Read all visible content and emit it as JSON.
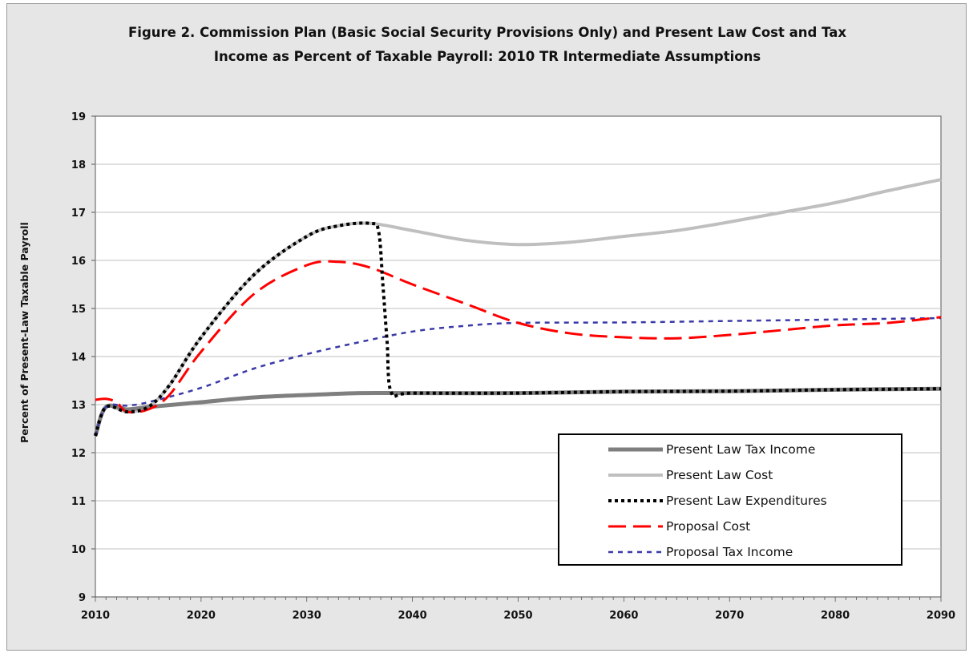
{
  "figure": {
    "title_line1": "Figure 2.  Commission Plan (Basic Social Security Provisions Only) and Present Law Cost and Tax",
    "title_line2": "Income as Percent of Taxable Payroll: 2010 TR Intermediate Assumptions"
  },
  "chart_data": {
    "type": "line",
    "ylabel": "Percent of Present-Law Taxable Payroll",
    "xlabel": "",
    "xlim": [
      2010,
      2090
    ],
    "ylim": [
      9,
      19
    ],
    "xticks": [
      2010,
      2020,
      2030,
      2040,
      2050,
      2060,
      2070,
      2080,
      2090
    ],
    "yticks": [
      9,
      10,
      11,
      12,
      13,
      14,
      15,
      16,
      17,
      18,
      19
    ],
    "grid": "horizontal",
    "legend_position": "bottom-right",
    "series": [
      {
        "name": "Present Law Tax Income",
        "style": "solid-thick",
        "color": "#7f7f7f",
        "points": [
          [
            2010,
            12.35
          ],
          [
            2011,
            12.95
          ],
          [
            2013,
            12.9
          ],
          [
            2015,
            12.95
          ],
          [
            2020,
            13.05
          ],
          [
            2025,
            13.15
          ],
          [
            2030,
            13.2
          ],
          [
            2035,
            13.24
          ],
          [
            2040,
            13.24
          ],
          [
            2050,
            13.24
          ],
          [
            2060,
            13.27
          ],
          [
            2070,
            13.28
          ],
          [
            2080,
            13.31
          ],
          [
            2090,
            13.33
          ]
        ]
      },
      {
        "name": "Present Law Cost",
        "style": "solid",
        "color": "#bfbfbf",
        "points": [
          [
            2010,
            12.35
          ],
          [
            2011,
            12.95
          ],
          [
            2013,
            12.85
          ],
          [
            2015,
            12.95
          ],
          [
            2017,
            13.4
          ],
          [
            2020,
            14.4
          ],
          [
            2025,
            15.7
          ],
          [
            2030,
            16.5
          ],
          [
            2033,
            16.72
          ],
          [
            2036,
            16.77
          ],
          [
            2040,
            16.62
          ],
          [
            2045,
            16.42
          ],
          [
            2050,
            16.33
          ],
          [
            2055,
            16.38
          ],
          [
            2060,
            16.5
          ],
          [
            2065,
            16.62
          ],
          [
            2070,
            16.8
          ],
          [
            2075,
            17.0
          ],
          [
            2080,
            17.2
          ],
          [
            2085,
            17.45
          ],
          [
            2090,
            17.68
          ]
        ]
      },
      {
        "name": "Present Law Expenditures",
        "style": "dotted",
        "color": "#000000",
        "points": [
          [
            2010,
            12.35
          ],
          [
            2011,
            12.95
          ],
          [
            2013,
            12.85
          ],
          [
            2015,
            12.95
          ],
          [
            2017,
            13.4
          ],
          [
            2020,
            14.4
          ],
          [
            2025,
            15.7
          ],
          [
            2030,
            16.5
          ],
          [
            2033,
            16.72
          ],
          [
            2036,
            16.77
          ],
          [
            2036.8,
            16.6
          ],
          [
            2037.2,
            15.5
          ],
          [
            2037.6,
            14.3
          ],
          [
            2038,
            13.25
          ],
          [
            2040,
            13.24
          ],
          [
            2050,
            13.24
          ],
          [
            2060,
            13.27
          ],
          [
            2070,
            13.28
          ],
          [
            2080,
            13.31
          ],
          [
            2090,
            13.33
          ]
        ]
      },
      {
        "name": "Proposal Cost",
        "style": "long-dash",
        "color": "#ff0000",
        "points": [
          [
            2010,
            13.1
          ],
          [
            2011,
            13.12
          ],
          [
            2012,
            13.05
          ],
          [
            2013,
            12.85
          ],
          [
            2015,
            12.9
          ],
          [
            2017,
            13.2
          ],
          [
            2020,
            14.1
          ],
          [
            2025,
            15.3
          ],
          [
            2030,
            15.9
          ],
          [
            2033,
            15.97
          ],
          [
            2036,
            15.85
          ],
          [
            2040,
            15.5
          ],
          [
            2045,
            15.1
          ],
          [
            2050,
            14.7
          ],
          [
            2055,
            14.48
          ],
          [
            2060,
            14.4
          ],
          [
            2065,
            14.38
          ],
          [
            2070,
            14.45
          ],
          [
            2075,
            14.55
          ],
          [
            2080,
            14.65
          ],
          [
            2085,
            14.7
          ],
          [
            2090,
            14.82
          ]
        ]
      },
      {
        "name": "Proposal Tax Income",
        "style": "short-dash",
        "color": "#3a3aa8",
        "points": [
          [
            2010,
            12.35
          ],
          [
            2011,
            12.95
          ],
          [
            2013,
            12.98
          ],
          [
            2015,
            13.05
          ],
          [
            2020,
            13.35
          ],
          [
            2025,
            13.75
          ],
          [
            2030,
            14.05
          ],
          [
            2035,
            14.3
          ],
          [
            2040,
            14.52
          ],
          [
            2045,
            14.64
          ],
          [
            2050,
            14.7
          ],
          [
            2060,
            14.71
          ],
          [
            2070,
            14.74
          ],
          [
            2080,
            14.77
          ],
          [
            2090,
            14.8
          ]
        ]
      }
    ]
  }
}
